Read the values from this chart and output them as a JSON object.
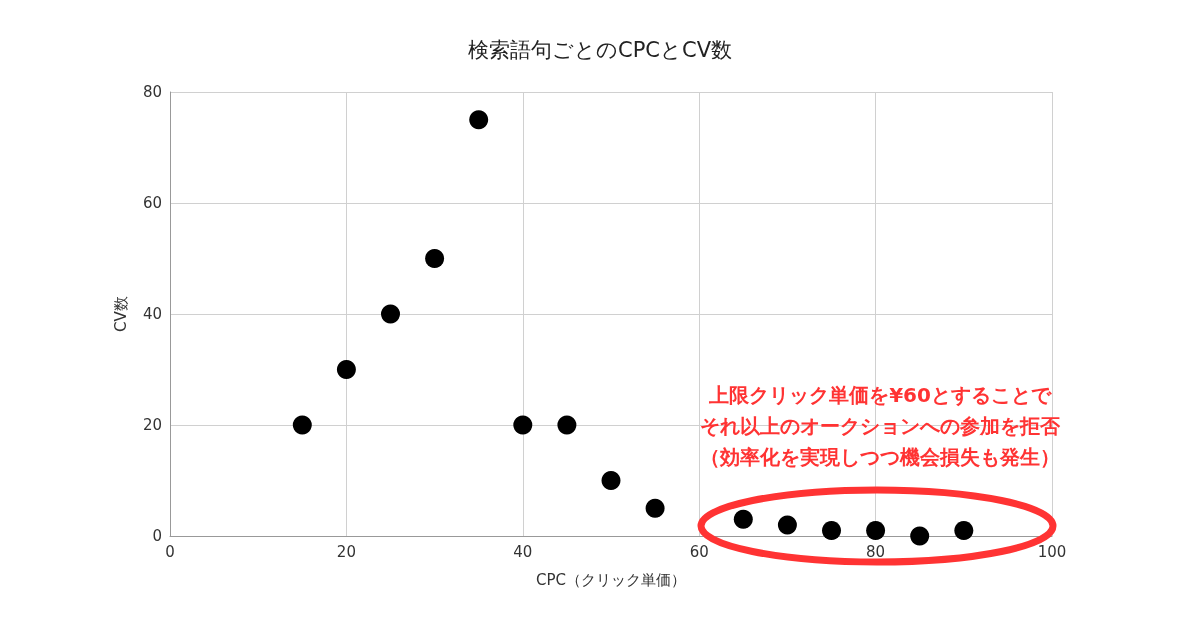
{
  "chart_data": {
    "type": "scatter",
    "title": "検索語句ごとのCPCとCV数",
    "xlabel": "CPC（クリック単価）",
    "ylabel": "CV数",
    "x": [
      15,
      20,
      25,
      30,
      35,
      40,
      45,
      50,
      55,
      65,
      70,
      75,
      80,
      85,
      90
    ],
    "series": [
      {
        "color": "#000000",
        "values": [
          20,
          30,
          40,
          50,
          75,
          20,
          20,
          10,
          5,
          3,
          2,
          1,
          1,
          0,
          1
        ]
      }
    ],
    "xlim": [
      0,
      100
    ],
    "xticks": [
      0,
      20,
      40,
      60,
      80,
      100
    ],
    "ylim": [
      0,
      80
    ],
    "yticks": [
      0,
      20,
      40,
      60,
      80
    ],
    "grid": true,
    "marker": "circle",
    "annotations": [
      "上限クリック単価を¥60とすることで",
      "それ以上のオークションへの参加を拒否",
      "（効率化を実現しつつ機会損失も発生）"
    ]
  }
}
